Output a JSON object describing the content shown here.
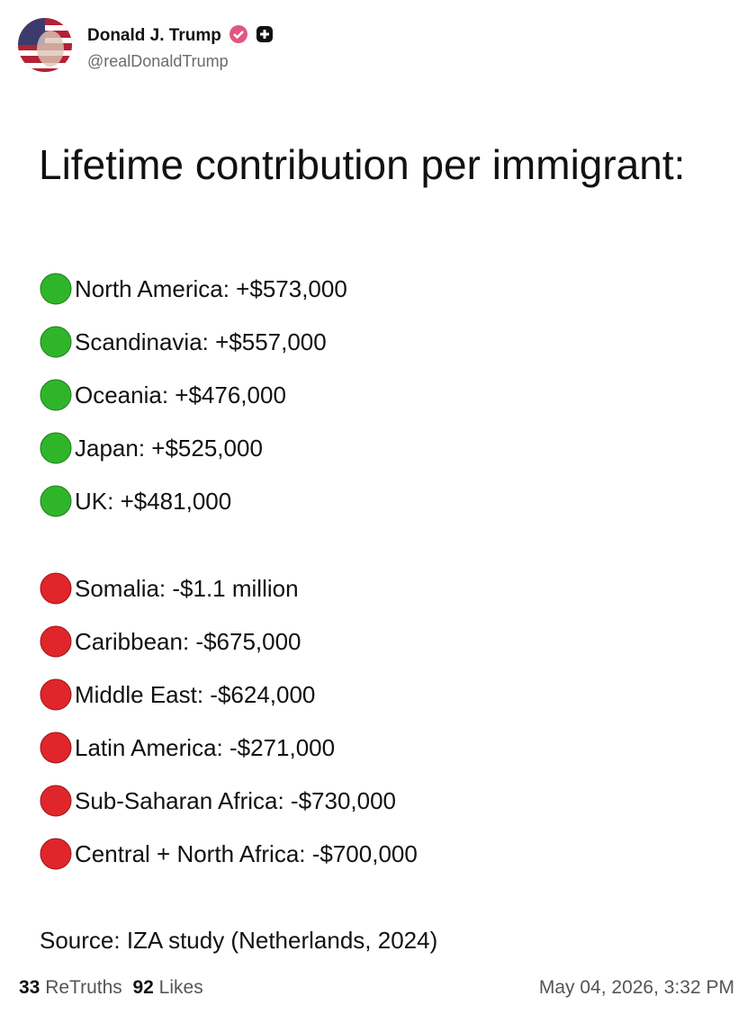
{
  "post": {
    "author": {
      "name": "Donald J. Trump",
      "handle": "@realDonaldTrump"
    },
    "title": "Lifetime contribution per immigrant:",
    "positive_items": [
      "North America: +$573,000",
      "Scandinavia: +$557,000",
      "Oceania: +$476,000",
      "Japan: +$525,000",
      "UK: +$481,000"
    ],
    "negative_items": [
      "Somalia: -$1.1 million",
      "Caribbean: -$675,000",
      "Middle East: -$624,000",
      "Latin America: -$271,000",
      "Sub-Saharan Africa: -$730,000",
      "Central + North Africa: -$700,000"
    ],
    "source": "Source: IZA study (Netherlands, 2024)",
    "stats": {
      "retruths_count": "33",
      "retruths_label": "ReTruths",
      "likes_count": "92",
      "likes_label": "Likes"
    },
    "timestamp": "May 04, 2026, 3:32 PM"
  }
}
